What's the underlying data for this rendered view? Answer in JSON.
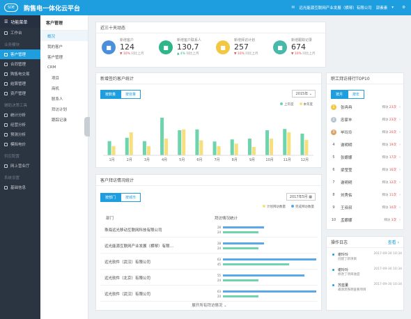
{
  "topbar": {
    "title": "购售电一体化云平台",
    "logo_text": "SDE",
    "company": "远光能源互联网产业发展（横琴）有限公司",
    "user": "郭素素"
  },
  "sidebar": {
    "header": "功能菜单",
    "top_item": "工作台",
    "groups": [
      {
        "label": "业务模块",
        "items": [
          "客户管理",
          "合同管理",
          "购售电交易",
          "结算管理",
          "资产管理"
        ]
      },
      {
        "label": "辅助决策工具",
        "items": [
          "统计分析",
          "经营分析",
          "预测分析",
          "模拟电价"
        ]
      },
      {
        "label": "供应配置",
        "items": [
          "网上营业厅"
        ]
      },
      {
        "label": "系统设置",
        "items": [
          "基础信息"
        ]
      }
    ],
    "active": "客户管理"
  },
  "submenu": {
    "title": "客户管理",
    "items": [
      "概况",
      "我的客户",
      "客户管理",
      "CRM"
    ],
    "crm_items": [
      "项目",
      "商机",
      "联系人",
      "拜访计划",
      "跟踪记录"
    ],
    "active": "概况"
  },
  "recent": {
    "title": "近三十天动态",
    "stats": [
      {
        "label": "新增客户",
        "value": "124",
        "change": "10%",
        "cmp": "同比上月",
        "dir": "down",
        "color": "#4a90d9",
        "icon": "building-icon"
      },
      {
        "label": "新增客户联系人",
        "value": "130,7",
        "change": "4%",
        "cmp": "同比上月",
        "dir": "up",
        "color": "#2fb58a",
        "icon": "contact-icon"
      },
      {
        "label": "新增拜访计划",
        "value": "257",
        "change": "10%",
        "cmp": "同比上月",
        "dir": "down",
        "color": "#f2c744",
        "icon": "calendar-icon"
      },
      {
        "label": "新增跟踪记录",
        "value": "674",
        "change": "10%",
        "cmp": "同比上月",
        "dir": "down",
        "color": "#48b9a8",
        "icon": "record-icon"
      }
    ]
  },
  "monthly": {
    "title": "新增签约客户统计",
    "tabs": [
      "按数量",
      "按容量"
    ],
    "year": "2015年",
    "legend": [
      "上年度",
      "本年度"
    ]
  },
  "chart_data": {
    "type": "bar",
    "categories": [
      "1月",
      "2月",
      "3月",
      "4月",
      "5月",
      "6月",
      "7月",
      "8月",
      "9月",
      "10月",
      "11月",
      "12月"
    ],
    "series": [
      {
        "name": "上年度",
        "values": [
          34,
          42,
          34,
          90,
          60,
          62,
          33,
          38,
          40,
          60,
          63,
          52
        ]
      },
      {
        "name": "本年度",
        "values": [
          22,
          55,
          22,
          40,
          62,
          36,
          22,
          28,
          20,
          40,
          55,
          37
        ]
      }
    ],
    "colors": [
      "#6dd4ac",
      "#f8df7e"
    ]
  },
  "visits": {
    "title": "客户拜访情况统计",
    "tabs": [
      "按部门",
      "按城市"
    ],
    "month": "2017年5月",
    "legend": [
      "计划拜访数量",
      "完成拜访数量"
    ],
    "col_dept": "部门",
    "col_stat": "拜访情况统计",
    "rows": [
      {
        "dept": "珠海远光移动互联网科技有限公司",
        "plan": 28,
        "done": 24
      },
      {
        "dept": "远光能源互联网产业发展（横琴）有限…",
        "plan": 28,
        "done": 24
      },
      {
        "dept": "远光软件（武汉）有限公司",
        "plan": 63,
        "done": 45
      },
      {
        "dept": "远光软件（北京）有限公司",
        "plan": 55,
        "done": 24
      },
      {
        "dept": "远光软件（武汉）有限公司",
        "plan": 63,
        "done": 24
      }
    ],
    "bar_max": 66,
    "more": "展开所有拜访情况"
  },
  "ranking": {
    "title": "职工拜访排行TOP10",
    "tabs": [
      "按月",
      "按年"
    ],
    "rows": [
      {
        "rank": "1",
        "name": "张冉冉",
        "label": "拜访",
        "count": "23次"
      },
      {
        "rank": "2",
        "name": "忠家丰",
        "label": "拜访",
        "count": "23次"
      },
      {
        "rank": "3",
        "name": "毕玲玲",
        "label": "拜访",
        "count": "20次"
      },
      {
        "rank": "4",
        "name": "谢明明",
        "label": "拜访",
        "count": "19次"
      },
      {
        "rank": "5",
        "name": "张娜娜",
        "label": "拜访",
        "count": "17次"
      },
      {
        "rank": "6",
        "name": "梁莹莹",
        "label": "拜访",
        "count": "16次"
      },
      {
        "rank": "7",
        "name": "谢明明",
        "label": "拜访",
        "count": "12次"
      },
      {
        "rank": "8",
        "name": "刘秀佑",
        "label": "拜访",
        "count": "11次"
      },
      {
        "rank": "9",
        "name": "王叔叔",
        "label": "拜访",
        "count": "10次"
      },
      {
        "rank": "10",
        "name": "孟娜娜",
        "label": "拜访",
        "count": "3次"
      }
    ]
  },
  "log": {
    "title": "操作日志",
    "more": "查看",
    "items": [
      {
        "who": "谢玲玲",
        "time": "2017-09-30 10:34",
        "what": "创建了新项目"
      },
      {
        "who": "谢玲玲",
        "time": "2017-09-30 10:34",
        "what": "修改了项目进度"
      },
      {
        "who": "苏蓝董",
        "time": "2017-09-30 10:34",
        "what": "邀请黑铁明查看项目"
      }
    ]
  }
}
